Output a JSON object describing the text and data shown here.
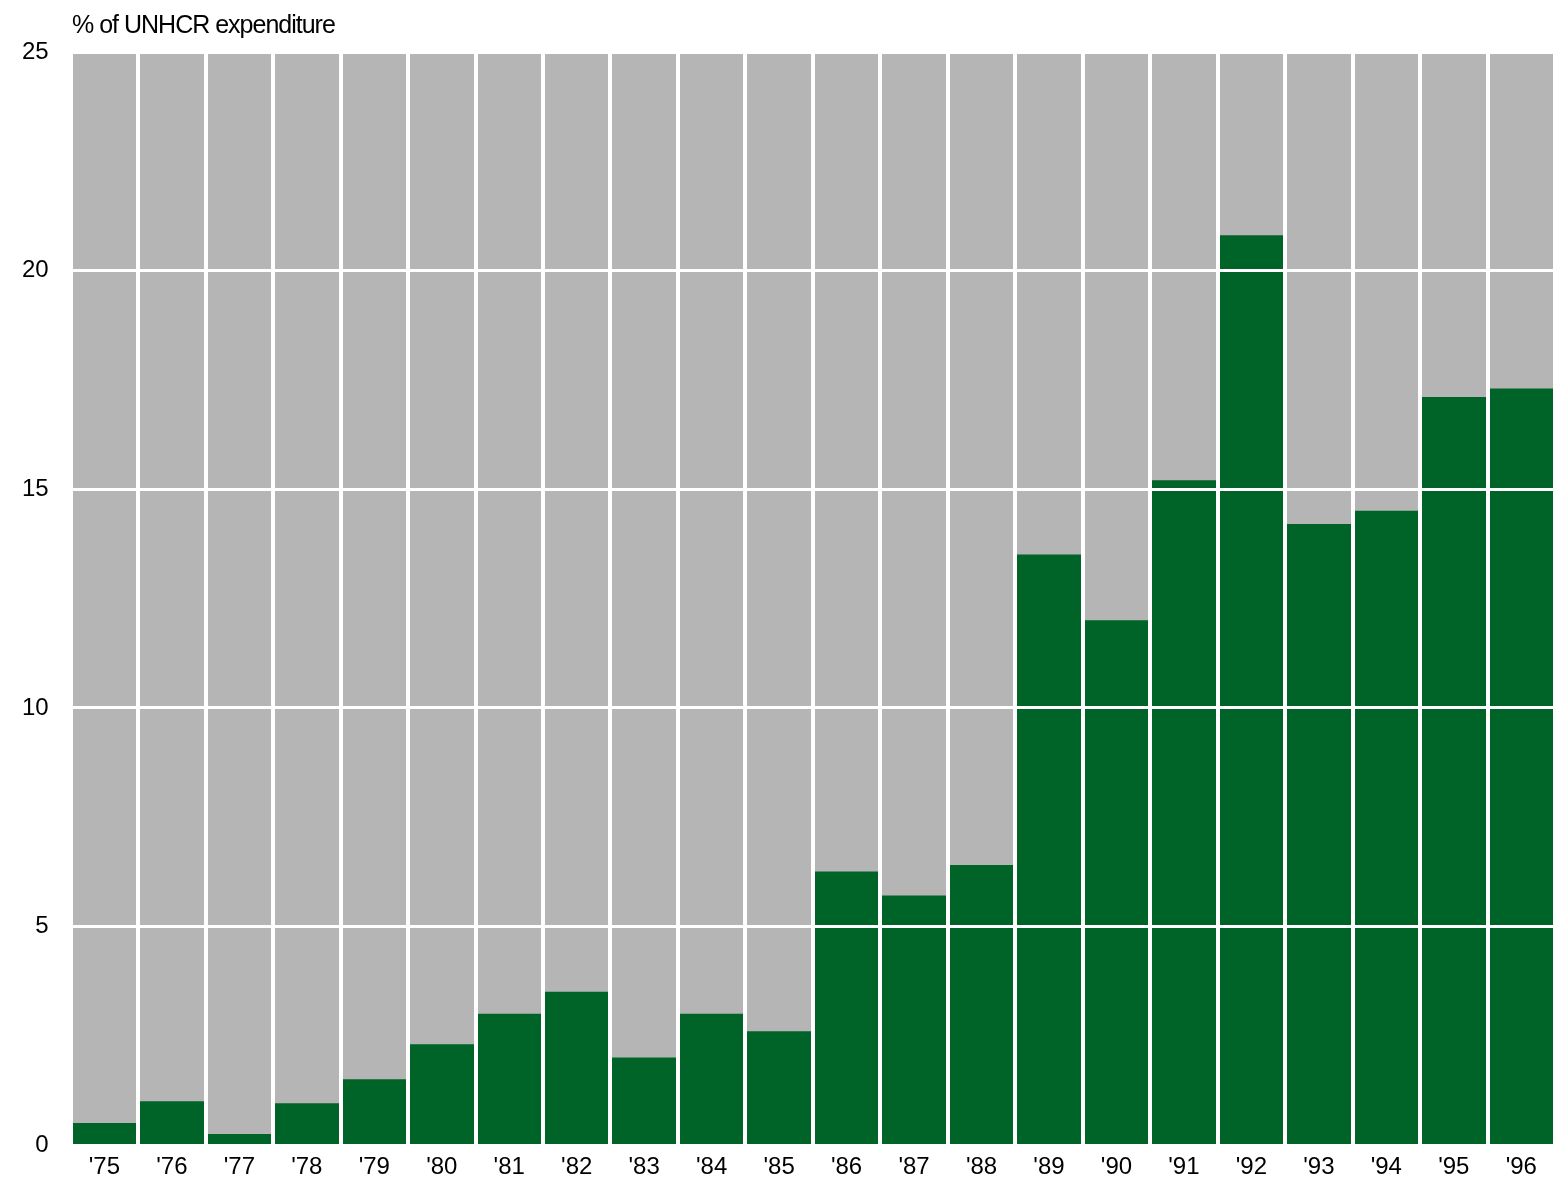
{
  "chart_data": {
    "type": "bar",
    "ylabel": "% of UNHCR expenditure",
    "categories": [
      "'75",
      "'76",
      "'77",
      "'78",
      "'79",
      "'80",
      "'81",
      "'82",
      "'83",
      "'84",
      "'85",
      "'86",
      "'87",
      "'88",
      "'89",
      "'90",
      "'91",
      "'92",
      "'93",
      "'94",
      "'95",
      "'96"
    ],
    "values": [
      0.5,
      1.0,
      0.25,
      0.95,
      1.5,
      2.3,
      3.0,
      3.5,
      2.0,
      3.0,
      2.6,
      6.25,
      5.7,
      6.4,
      13.5,
      12.0,
      15.2,
      20.8,
      14.2,
      14.5,
      17.1,
      17.3
    ],
    "color": "#006428",
    "ylim": [
      0,
      25
    ],
    "yticks": [
      0,
      5,
      10,
      15,
      20,
      25
    ],
    "grid": true,
    "legend": false
  }
}
